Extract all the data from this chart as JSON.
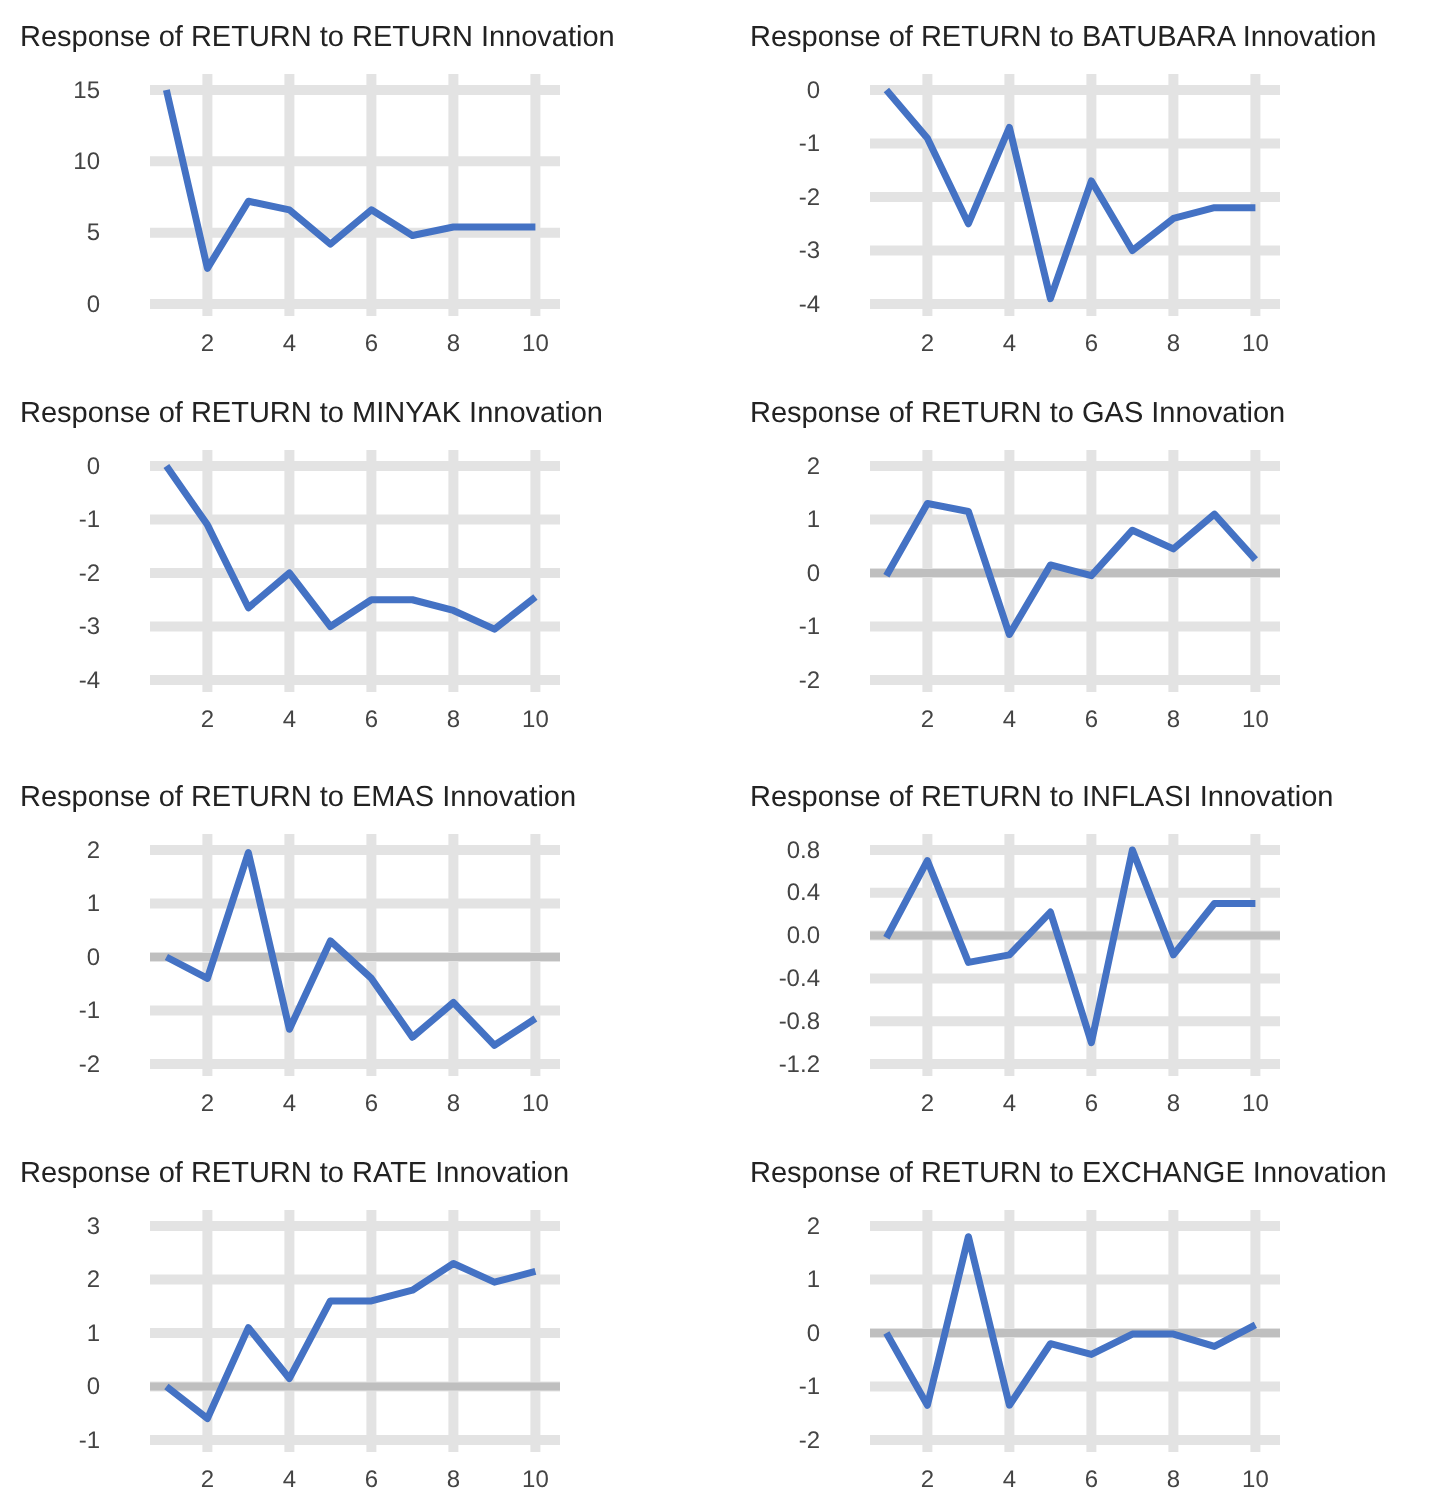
{
  "chart_data": [
    {
      "type": "line",
      "title": "Response of RETURN to RETURN Innovation",
      "x": [
        1,
        2,
        3,
        4,
        5,
        6,
        7,
        8,
        9,
        10
      ],
      "xlim": [
        0.6,
        10.6
      ],
      "xticks": [
        2,
        4,
        6,
        8,
        10
      ],
      "ylim": [
        0,
        15
      ],
      "yticks": [
        0,
        5,
        10,
        15
      ],
      "grid": true,
      "series": [
        {
          "color": "#4472c4",
          "values": [
            15,
            2.5,
            7.2,
            6.6,
            4.2,
            6.6,
            4.8,
            5.4,
            5.4,
            5.4
          ]
        }
      ]
    },
    {
      "type": "line",
      "title": "Response of RETURN to BATUBARA Innovation",
      "x": [
        1,
        2,
        3,
        4,
        5,
        6,
        7,
        8,
        9,
        10
      ],
      "xlim": [
        0.6,
        10.6
      ],
      "xticks": [
        2,
        4,
        6,
        8,
        10
      ],
      "ylim": [
        -4,
        0
      ],
      "yticks": [
        -4,
        -3,
        -2,
        -1,
        0
      ],
      "grid": true,
      "series": [
        {
          "color": "#4472c4",
          "values": [
            0,
            -0.9,
            -2.5,
            -0.7,
            -3.9,
            -1.7,
            -3.0,
            -2.4,
            -2.2,
            -2.2
          ]
        }
      ]
    },
    {
      "type": "line",
      "title": "Response of RETURN to MINYAK Innovation",
      "x": [
        1,
        2,
        3,
        4,
        5,
        6,
        7,
        8,
        9,
        10
      ],
      "xlim": [
        0.6,
        10.6
      ],
      "xticks": [
        2,
        4,
        6,
        8,
        10
      ],
      "ylim": [
        -4,
        0
      ],
      "yticks": [
        -4,
        -3,
        -2,
        -1,
        0
      ],
      "grid": true,
      "series": [
        {
          "color": "#4472c4",
          "values": [
            0,
            -1.1,
            -2.65,
            -2.0,
            -3.0,
            -2.5,
            -2.5,
            -2.7,
            -3.05,
            -2.45
          ]
        }
      ]
    },
    {
      "type": "line",
      "title": "Response of RETURN to GAS Innovation",
      "x": [
        1,
        2,
        3,
        4,
        5,
        6,
        7,
        8,
        9,
        10
      ],
      "xlim": [
        0.6,
        10.6
      ],
      "xticks": [
        2,
        4,
        6,
        8,
        10
      ],
      "ylim": [
        -2,
        2
      ],
      "yticks": [
        -2,
        -1,
        0,
        1,
        2
      ],
      "grid": true,
      "series": [
        {
          "color": "#4472c4",
          "values": [
            -0.05,
            1.3,
            1.15,
            -1.15,
            0.15,
            -0.05,
            0.8,
            0.45,
            1.1,
            0.25
          ]
        }
      ]
    },
    {
      "type": "line",
      "title": "Response of RETURN to EMAS Innovation",
      "x": [
        1,
        2,
        3,
        4,
        5,
        6,
        7,
        8,
        9,
        10
      ],
      "xlim": [
        0.6,
        10.6
      ],
      "xticks": [
        2,
        4,
        6,
        8,
        10
      ],
      "ylim": [
        -2,
        2
      ],
      "yticks": [
        -2,
        -1,
        0,
        1,
        2
      ],
      "grid": true,
      "series": [
        {
          "color": "#4472c4",
          "values": [
            0,
            -0.4,
            1.95,
            -1.35,
            0.3,
            -0.4,
            -1.5,
            -0.85,
            -1.65,
            -1.15
          ]
        }
      ]
    },
    {
      "type": "line",
      "title": "Response of RETURN to INFLASI Innovation",
      "x": [
        1,
        2,
        3,
        4,
        5,
        6,
        7,
        8,
        9,
        10
      ],
      "xlim": [
        0.6,
        10.6
      ],
      "xticks": [
        2,
        4,
        6,
        8,
        10
      ],
      "ylim": [
        -1.2,
        0.8
      ],
      "yticks": [
        {
          "value": -1.2,
          "label": "-1.2"
        },
        {
          "value": -0.8,
          "label": "-0.8"
        },
        {
          "value": -0.4,
          "label": "-0.4"
        },
        {
          "value": 0,
          "label": "0.0"
        },
        {
          "value": 0.4,
          "label": "0.4"
        },
        {
          "value": 0.8,
          "label": "0.8"
        }
      ],
      "grid": true,
      "series": [
        {
          "color": "#4472c4",
          "values": [
            -0.02,
            0.7,
            -0.25,
            -0.18,
            0.22,
            -1.0,
            0.8,
            -0.18,
            0.3,
            0.3
          ]
        }
      ]
    },
    {
      "type": "line",
      "title": "Response of RETURN to RATE Innovation",
      "x": [
        1,
        2,
        3,
        4,
        5,
        6,
        7,
        8,
        9,
        10
      ],
      "xlim": [
        0.6,
        10.6
      ],
      "xticks": [
        2,
        4,
        6,
        8,
        10
      ],
      "ylim": [
        -1,
        3
      ],
      "yticks": [
        -1,
        0,
        1,
        2,
        3
      ],
      "grid": true,
      "series": [
        {
          "color": "#4472c4",
          "values": [
            0,
            -0.6,
            1.1,
            0.15,
            1.6,
            1.6,
            1.8,
            2.3,
            1.95,
            2.15
          ]
        }
      ]
    },
    {
      "type": "line",
      "title": "Response of RETURN to EXCHANGE Innovation",
      "x": [
        1,
        2,
        3,
        4,
        5,
        6,
        7,
        8,
        9,
        10
      ],
      "xlim": [
        0.6,
        10.6
      ],
      "xticks": [
        2,
        4,
        6,
        8,
        10
      ],
      "ylim": [
        -2,
        2
      ],
      "yticks": [
        -2,
        -1,
        0,
        1,
        2
      ],
      "grid": true,
      "series": [
        {
          "color": "#4472c4",
          "values": [
            0,
            -1.35,
            1.8,
            -1.35,
            -0.2,
            -0.4,
            -0.02,
            -0.02,
            -0.25,
            0.15
          ]
        }
      ]
    }
  ]
}
